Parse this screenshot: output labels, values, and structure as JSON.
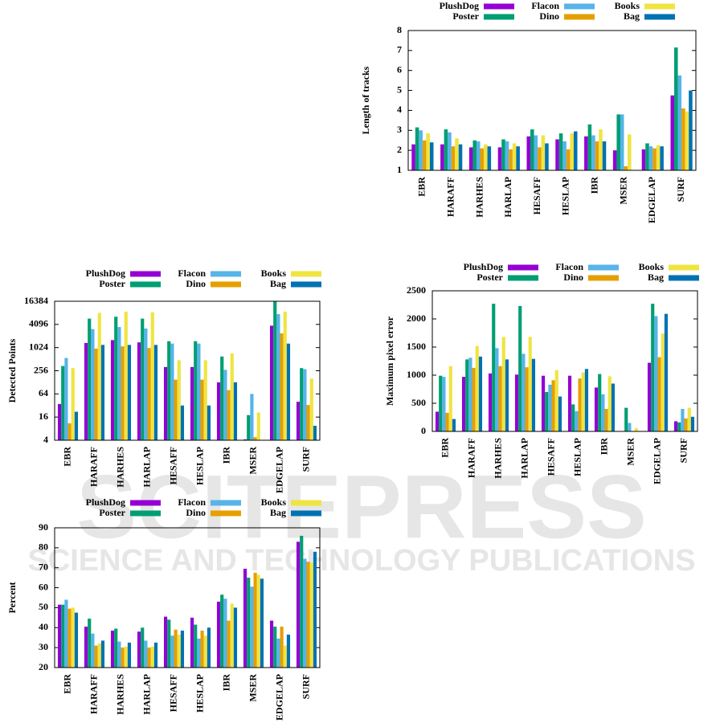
{
  "watermark": {
    "title": "SCITEPRESS",
    "subtitle": "SCIENCE AND TECHNOLOGY PUBLICATIONS"
  },
  "chart_data": [
    {
      "type": "bar",
      "y_label": "Length of tracks",
      "categories": [
        "EBR",
        "HARAFF",
        "HARHES",
        "HARLAP",
        "HESAFF",
        "HESLAP",
        "IBR",
        "MSER",
        "EDGELAP",
        "SURF"
      ],
      "series": [
        {
          "name": "PlushDog",
          "color": "#9400d3",
          "values": [
            2.3,
            2.3,
            2.15,
            2.15,
            2.7,
            2.55,
            2.7,
            2.0,
            2.05,
            4.75
          ]
        },
        {
          "name": "Poster",
          "color": "#009e73",
          "values": [
            3.15,
            3.05,
            2.5,
            2.55,
            3.05,
            2.85,
            3.3,
            3.8,
            2.35,
            7.15
          ]
        },
        {
          "name": "Flacon",
          "color": "#56b4e9",
          "values": [
            3.0,
            2.9,
            2.45,
            2.45,
            2.75,
            2.45,
            2.75,
            3.8,
            2.2,
            5.75
          ]
        },
        {
          "name": "Dino",
          "color": "#e69f00",
          "values": [
            2.5,
            2.2,
            2.1,
            2.05,
            2.15,
            2.05,
            2.45,
            1.2,
            2.1,
            4.1
          ]
        },
        {
          "name": "Books",
          "color": "#f0e442",
          "values": [
            2.85,
            2.6,
            2.3,
            2.35,
            2.75,
            2.85,
            3.05,
            2.8,
            2.25,
            3.95
          ]
        },
        {
          "name": "Bag",
          "color": "#0072b2",
          "values": [
            2.4,
            2.3,
            2.2,
            2.2,
            2.35,
            2.95,
            2.45,
            null,
            2.2,
            5.0
          ]
        }
      ],
      "ylim": [
        1,
        8
      ],
      "yticks": [
        1,
        2,
        3,
        4,
        5,
        6,
        7,
        8
      ]
    },
    {
      "type": "bar",
      "y_label": "Detected Points",
      "log_base": 2,
      "categories": [
        "EBR",
        "HARAFF",
        "HARHES",
        "HARLAP",
        "HESAFF",
        "HESLAP",
        "IBR",
        "MSER",
        "EDGELAP",
        "SURF"
      ],
      "series": [
        {
          "name": "PlushDog",
          "color": "#9400d3",
          "values": [
            35,
            1350,
            1600,
            1400,
            320,
            320,
            128,
            4.2,
            3800,
            40
          ]
        },
        {
          "name": "Poster",
          "color": "#009e73",
          "values": [
            340,
            5800,
            6500,
            5800,
            1500,
            1500,
            600,
            18,
            16000,
            300
          ]
        },
        {
          "name": "Flacon",
          "color": "#56b4e9",
          "values": [
            550,
            3100,
            3500,
            3200,
            1300,
            1300,
            270,
            64,
            7600,
            280
          ]
        },
        {
          "name": "Dino",
          "color": "#e69f00",
          "values": [
            11,
            960,
            1100,
            1000,
            150,
            150,
            80,
            4.8,
            2400,
            33
          ]
        },
        {
          "name": "Books",
          "color": "#f0e442",
          "values": [
            300,
            8200,
            8800,
            8500,
            480,
            480,
            720,
            21,
            8800,
            160
          ]
        },
        {
          "name": "Bag",
          "color": "#0072b2",
          "values": [
            22,
            1200,
            1200,
            1200,
            32,
            32,
            128,
            null,
            1300,
            9.5
          ]
        }
      ],
      "ylim": [
        4,
        16384
      ],
      "yticks": [
        4,
        16,
        64,
        256,
        1024,
        4096,
        16384
      ]
    },
    {
      "type": "bar",
      "y_label": "Maximum pixel error",
      "categories": [
        "EBR",
        "HARAFF",
        "HARHES",
        "HARLAP",
        "HESAFF",
        "HESLAP",
        "IBR",
        "MSER",
        "EDGELAP",
        "SURF"
      ],
      "series": [
        {
          "name": "PlushDog",
          "color": "#9400d3",
          "values": [
            350,
            970,
            1030,
            1010,
            990,
            990,
            780,
            0,
            1220,
            180
          ]
        },
        {
          "name": "Poster",
          "color": "#009e73",
          "values": [
            990,
            1280,
            2270,
            2230,
            700,
            480,
            1020,
            420,
            2270,
            160
          ]
        },
        {
          "name": "Flacon",
          "color": "#56b4e9",
          "values": [
            970,
            1310,
            1480,
            1380,
            830,
            360,
            660,
            150,
            2050,
            400
          ]
        },
        {
          "name": "Dino",
          "color": "#e69f00",
          "values": [
            330,
            1130,
            1160,
            1140,
            910,
            940,
            400,
            0,
            1320,
            230
          ]
        },
        {
          "name": "Books",
          "color": "#f0e442",
          "values": [
            1160,
            1520,
            1680,
            1680,
            1090,
            1050,
            980,
            60,
            1740,
            420
          ]
        },
        {
          "name": "Bag",
          "color": "#0072b2",
          "values": [
            220,
            1330,
            1280,
            1290,
            620,
            1110,
            850,
            0,
            2090,
            260
          ]
        }
      ],
      "ylim": [
        0,
        2500
      ],
      "yticks": [
        0,
        500,
        1000,
        1500,
        2000,
        2500
      ]
    },
    {
      "type": "bar",
      "y_label": "Percent",
      "categories": [
        "EBR",
        "HARAFF",
        "HARHES",
        "HARLAP",
        "HESAFF",
        "HESLAP",
        "IBR",
        "MSER",
        "EDGELAP",
        "SURF"
      ],
      "series": [
        {
          "name": "PlushDog",
          "color": "#9400d3",
          "values": [
            51.5,
            40.5,
            38.5,
            38,
            45.5,
            45,
            53,
            69.5,
            43.5,
            83
          ]
        },
        {
          "name": "Poster",
          "color": "#009e73",
          "values": [
            51.5,
            44.5,
            39.5,
            40,
            44,
            41.5,
            56.5,
            65,
            40.5,
            86
          ]
        },
        {
          "name": "Flacon",
          "color": "#56b4e9",
          "values": [
            54,
            37,
            33,
            33.5,
            36,
            34.5,
            54.5,
            60.5,
            34.5,
            74.5
          ]
        },
        {
          "name": "Dino",
          "color": "#e69f00",
          "values": [
            49.5,
            31,
            30,
            30,
            39,
            38.5,
            43.5,
            67.5,
            40.5,
            73
          ]
        },
        {
          "name": "Books",
          "color": "#f0e442",
          "values": [
            50,
            32,
            30.5,
            30.5,
            36.5,
            36,
            52,
            66.5,
            31,
            72.5
          ]
        },
        {
          "name": "Bag",
          "color": "#0072b2",
          "values": [
            47.5,
            33.5,
            32.5,
            32.5,
            38.5,
            40,
            50,
            64.5,
            36.5,
            78
          ]
        }
      ],
      "ylim": [
        20,
        90
      ],
      "yticks": [
        20,
        30,
        40,
        50,
        60,
        70,
        80,
        90
      ]
    }
  ]
}
